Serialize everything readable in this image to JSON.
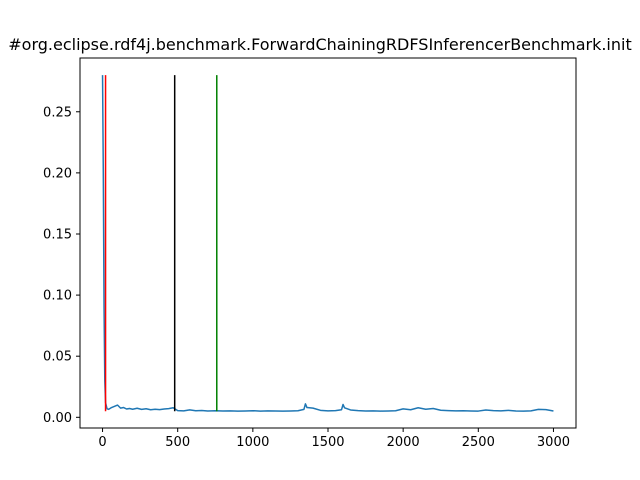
{
  "chart_data": {
    "type": "line",
    "title": "#org.eclipse.rdf4j.benchmark.ForwardChainingRDFSInferencerBenchmark.init",
    "xlabel": "",
    "ylabel": "",
    "xlim": [
      -150,
      3150
    ],
    "ylim": [
      -0.00875,
      0.294
    ],
    "xticks": [
      0,
      500,
      1000,
      1500,
      2000,
      2500,
      3000
    ],
    "xtick_labels": [
      "0",
      "500",
      "1000",
      "1500",
      "2000",
      "2500",
      "3000"
    ],
    "yticks": [
      0.0,
      0.05,
      0.1,
      0.15,
      0.2,
      0.25
    ],
    "ytick_labels": [
      "0.00",
      "0.05",
      "0.10",
      "0.15",
      "0.20",
      "0.25"
    ],
    "grid": false,
    "legend": "none",
    "series": [
      {
        "color": "#1f77b4",
        "x": [
          0,
          5,
          10,
          15,
          20,
          30,
          40,
          60,
          80,
          100,
          120,
          140,
          160,
          180,
          200,
          230,
          260,
          290,
          320,
          350,
          380,
          410,
          440,
          470,
          500,
          540,
          580,
          620,
          660,
          700,
          750,
          800,
          850,
          900,
          950,
          1000,
          1050,
          1100,
          1150,
          1200,
          1250,
          1300,
          1340,
          1350,
          1360,
          1400,
          1450,
          1500,
          1550,
          1590,
          1600,
          1610,
          1650,
          1700,
          1750,
          1800,
          1850,
          1900,
          1950,
          2000,
          2050,
          2100,
          2150,
          2200,
          2250,
          2300,
          2350,
          2400,
          2450,
          2500,
          2550,
          2600,
          2650,
          2700,
          2750,
          2800,
          2850,
          2900,
          2950,
          3000
        ],
        "y": [
          0.28,
          0.2,
          0.09,
          0.03,
          0.012,
          0.007,
          0.0065,
          0.008,
          0.009,
          0.01,
          0.0075,
          0.008,
          0.0068,
          0.0072,
          0.0066,
          0.0074,
          0.0065,
          0.007,
          0.0062,
          0.0066,
          0.0063,
          0.0068,
          0.0071,
          0.0078,
          0.0055,
          0.0053,
          0.0061,
          0.0054,
          0.0056,
          0.0052,
          0.0054,
          0.0052,
          0.0053,
          0.0051,
          0.0052,
          0.0054,
          0.0051,
          0.0053,
          0.0052,
          0.0051,
          0.0052,
          0.0054,
          0.0065,
          0.011,
          0.008,
          0.0075,
          0.0057,
          0.0053,
          0.0055,
          0.0062,
          0.0105,
          0.0078,
          0.006,
          0.0055,
          0.0052,
          0.0053,
          0.0051,
          0.0052,
          0.0054,
          0.0069,
          0.0062,
          0.0078,
          0.0066,
          0.0072,
          0.0058,
          0.0055,
          0.0053,
          0.0054,
          0.0052,
          0.0051,
          0.006,
          0.0055,
          0.0053,
          0.0057,
          0.0052,
          0.0051,
          0.0053,
          0.0065,
          0.0063,
          0.0052
        ]
      }
    ],
    "vlines": [
      {
        "x": 20,
        "ymin": 0.005,
        "ymax": 0.28,
        "color": "#ff0000"
      },
      {
        "x": 480,
        "ymin": 0.005,
        "ymax": 0.28,
        "color": "#000000"
      },
      {
        "x": 760,
        "ymin": 0.005,
        "ymax": 0.28,
        "color": "#008000"
      }
    ]
  }
}
